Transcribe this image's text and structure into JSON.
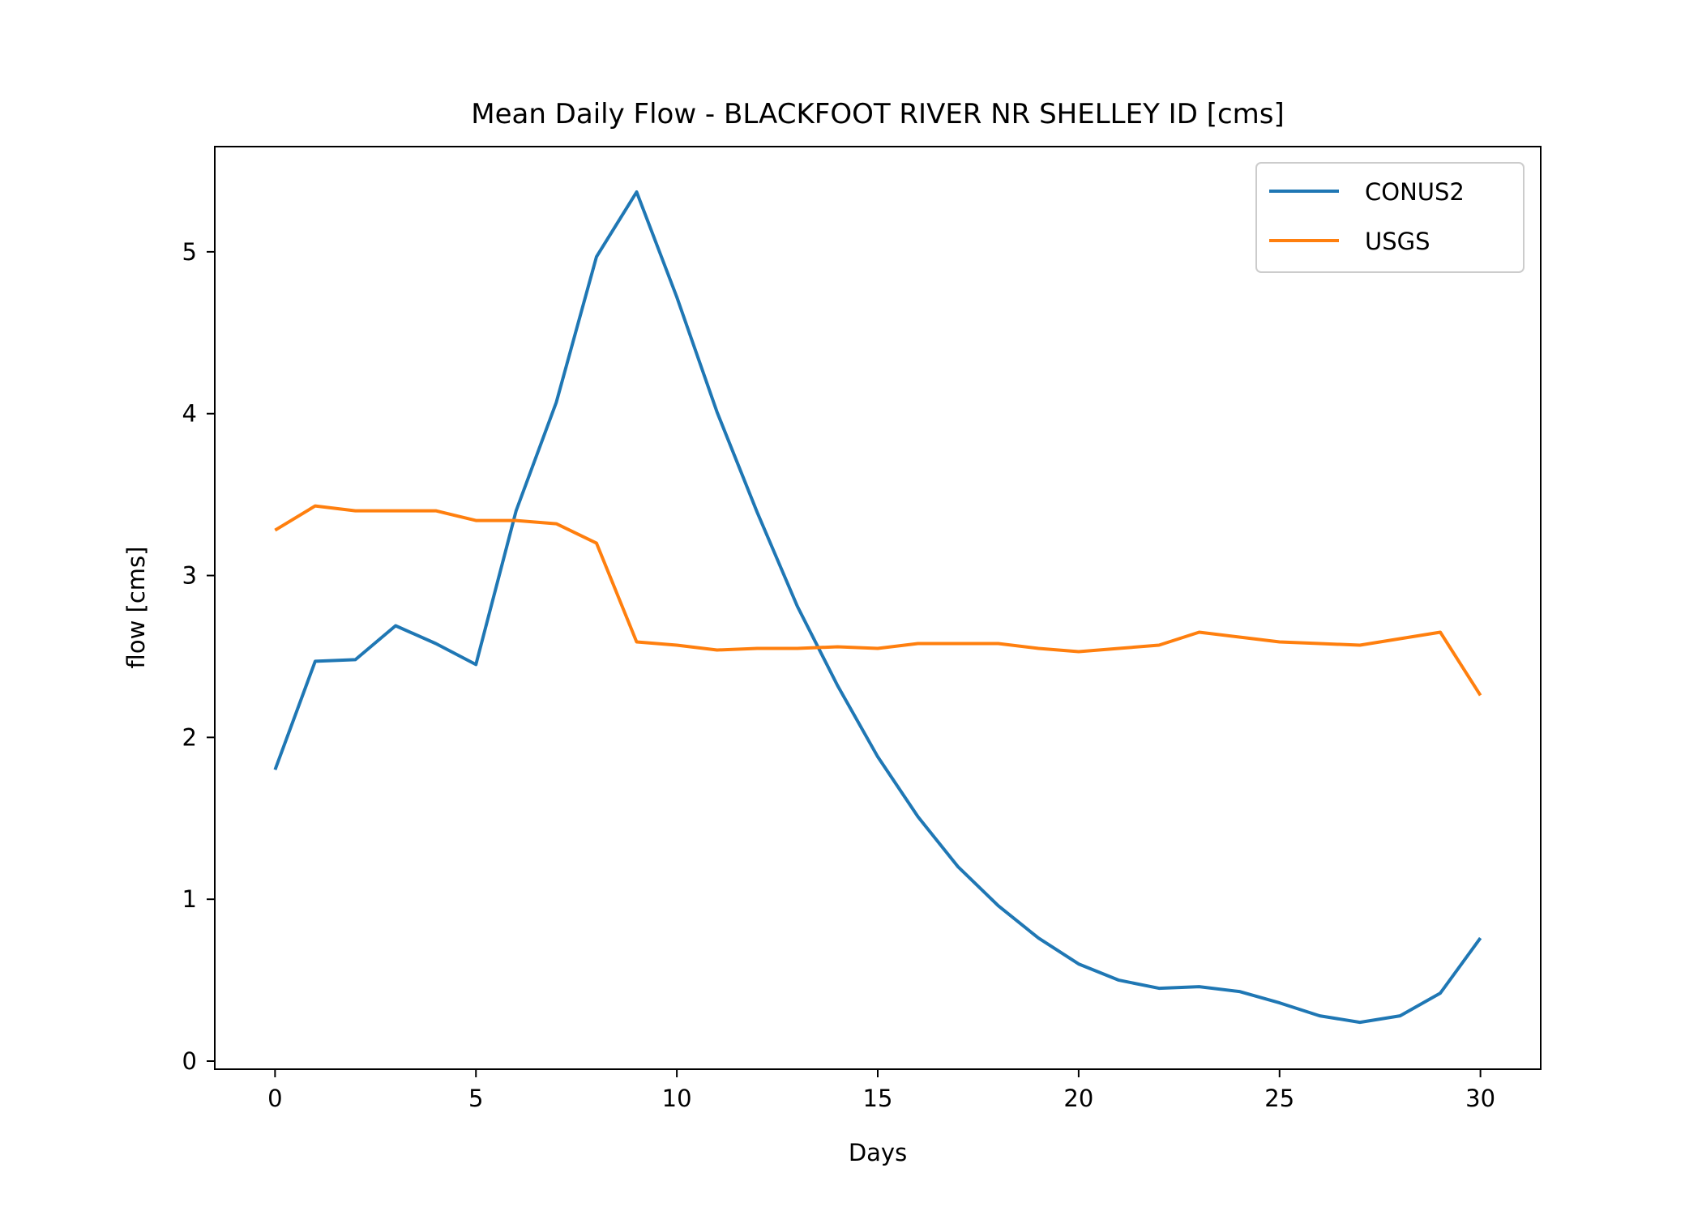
{
  "chart_data": {
    "type": "line",
    "title": "Mean Daily Flow - BLACKFOOT RIVER NR SHELLEY ID [cms]",
    "xlabel": "Days",
    "ylabel": "flow [cms]",
    "xlim": [
      -1.5,
      31.5
    ],
    "ylim": [
      -0.05,
      5.65
    ],
    "xticks": [
      0,
      5,
      10,
      15,
      20,
      25,
      30
    ],
    "yticks": [
      0,
      1,
      2,
      3,
      4,
      5
    ],
    "grid": false,
    "legend_position": "top-right",
    "x": [
      0,
      1,
      2,
      3,
      4,
      5,
      6,
      7,
      8,
      9,
      10,
      11,
      12,
      13,
      14,
      15,
      16,
      17,
      18,
      19,
      20,
      21,
      22,
      23,
      24,
      25,
      26,
      27,
      28,
      29,
      30
    ],
    "series": [
      {
        "name": "CONUS2",
        "color": "#1f77b4",
        "values": [
          1.8,
          2.47,
          2.48,
          2.69,
          2.58,
          2.45,
          3.4,
          4.07,
          4.97,
          5.37,
          4.72,
          4.01,
          3.39,
          2.81,
          2.32,
          1.88,
          1.51,
          1.2,
          0.96,
          0.76,
          0.6,
          0.5,
          0.45,
          0.46,
          0.43,
          0.36,
          0.28,
          0.24,
          0.28,
          0.42,
          0.76
        ]
      },
      {
        "name": "USGS",
        "color": "#ff7f0e",
        "values": [
          3.28,
          3.43,
          3.4,
          3.4,
          3.4,
          3.34,
          3.34,
          3.32,
          3.2,
          2.59,
          2.57,
          2.54,
          2.55,
          2.55,
          2.56,
          2.55,
          2.58,
          2.58,
          2.58,
          2.55,
          2.53,
          2.55,
          2.57,
          2.65,
          2.62,
          2.59,
          2.58,
          2.57,
          2.61,
          2.65,
          2.26
        ]
      }
    ]
  }
}
